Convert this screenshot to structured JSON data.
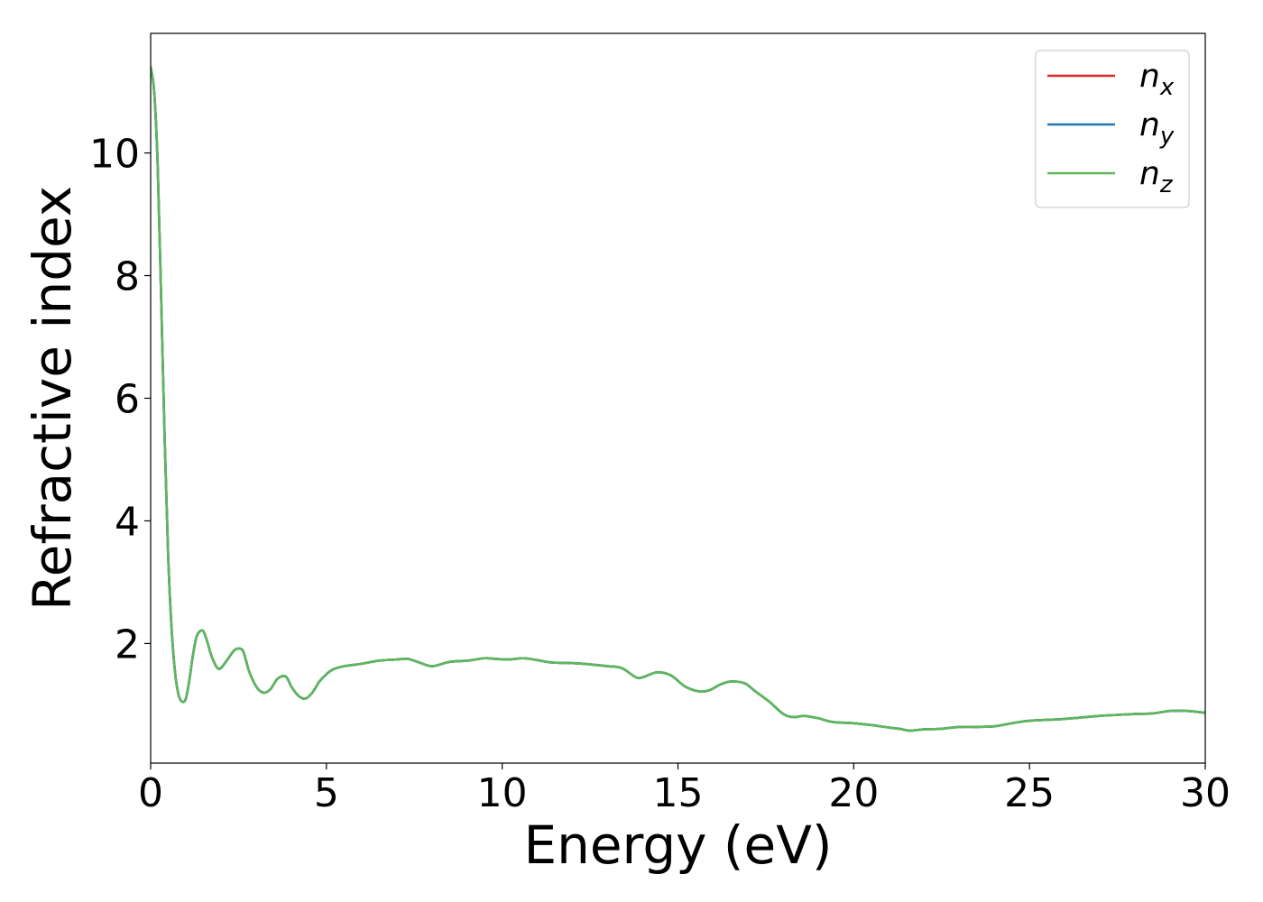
{
  "chart_data": {
    "type": "line",
    "xlabel": "Energy (eV)",
    "ylabel": "Refractive index",
    "xlim": [
      0,
      30
    ],
    "ylim": [
      0.05,
      11.95
    ],
    "x_ticks": [
      0,
      5,
      10,
      15,
      20,
      25,
      30
    ],
    "x_tick_labels": [
      "0",
      "5",
      "10",
      "15",
      "20",
      "25",
      "30"
    ],
    "y_ticks": [
      2,
      4,
      6,
      8,
      10
    ],
    "y_tick_labels": [
      "2",
      "4",
      "6",
      "8",
      "10"
    ],
    "grid": false,
    "legend_position": "top-right",
    "x": [
      0,
      0.1,
      0.2,
      0.3,
      0.4,
      0.5,
      0.6,
      0.7,
      0.8,
      0.9,
      1.0,
      1.1,
      1.2,
      1.3,
      1.4,
      1.5,
      1.6,
      1.7,
      1.8,
      1.9,
      2.0,
      2.2,
      2.4,
      2.6,
      2.7,
      2.8,
      3.0,
      3.2,
      3.4,
      3.6,
      3.8,
      3.9,
      4.0,
      4.2,
      4.4,
      4.6,
      4.8,
      5.0,
      5.2,
      5.5,
      6.0,
      6.5,
      7.0,
      7.3,
      7.6,
      8.0,
      8.5,
      9.0,
      9.5,
      9.8,
      10.2,
      10.6,
      11.0,
      11.4,
      12.0,
      12.5,
      13.0,
      13.4,
      13.8,
      14.0,
      14.4,
      14.8,
      15.2,
      15.6,
      15.9,
      16.2,
      16.5,
      16.9,
      17.2,
      17.6,
      18.0,
      18.3,
      18.6,
      19.0,
      19.4,
      20.0,
      20.5,
      21.0,
      21.3,
      21.6,
      22.0,
      22.5,
      23.0,
      23.5,
      24.0,
      24.5,
      25.0,
      26.0,
      27.0,
      28.0,
      28.5,
      29.0,
      29.5,
      30.0
    ],
    "series": [
      {
        "name": "n_x",
        "label_main": "n",
        "label_sub": "x",
        "color": "#d62728",
        "values": [
          11.4,
          11.0,
          9.8,
          7.6,
          5.3,
          3.4,
          2.2,
          1.5,
          1.15,
          1.05,
          1.1,
          1.4,
          1.8,
          2.1,
          2.2,
          2.2,
          2.05,
          1.85,
          1.7,
          1.6,
          1.6,
          1.75,
          1.9,
          1.9,
          1.75,
          1.55,
          1.3,
          1.2,
          1.25,
          1.42,
          1.47,
          1.42,
          1.3,
          1.15,
          1.1,
          1.2,
          1.38,
          1.5,
          1.58,
          1.63,
          1.67,
          1.72,
          1.74,
          1.75,
          1.7,
          1.63,
          1.7,
          1.72,
          1.76,
          1.75,
          1.74,
          1.76,
          1.73,
          1.69,
          1.68,
          1.66,
          1.63,
          1.6,
          1.45,
          1.45,
          1.53,
          1.48,
          1.3,
          1.22,
          1.24,
          1.33,
          1.38,
          1.35,
          1.22,
          1.05,
          0.85,
          0.8,
          0.82,
          0.78,
          0.72,
          0.7,
          0.67,
          0.63,
          0.61,
          0.58,
          0.6,
          0.61,
          0.64,
          0.64,
          0.65,
          0.7,
          0.74,
          0.77,
          0.82,
          0.85,
          0.86,
          0.9,
          0.9,
          0.87
        ]
      },
      {
        "name": "n_y",
        "label_main": "n",
        "label_sub": "y",
        "color": "#1f77b4",
        "values": [
          11.4,
          11.0,
          9.8,
          7.6,
          5.3,
          3.4,
          2.2,
          1.5,
          1.15,
          1.05,
          1.1,
          1.4,
          1.8,
          2.1,
          2.2,
          2.2,
          2.05,
          1.85,
          1.7,
          1.6,
          1.6,
          1.75,
          1.9,
          1.9,
          1.75,
          1.55,
          1.3,
          1.2,
          1.25,
          1.42,
          1.47,
          1.42,
          1.3,
          1.15,
          1.1,
          1.2,
          1.38,
          1.5,
          1.58,
          1.63,
          1.67,
          1.72,
          1.74,
          1.75,
          1.7,
          1.63,
          1.7,
          1.72,
          1.76,
          1.75,
          1.74,
          1.76,
          1.73,
          1.69,
          1.68,
          1.66,
          1.63,
          1.6,
          1.45,
          1.45,
          1.53,
          1.48,
          1.3,
          1.22,
          1.24,
          1.33,
          1.38,
          1.35,
          1.22,
          1.05,
          0.85,
          0.8,
          0.82,
          0.78,
          0.72,
          0.7,
          0.67,
          0.63,
          0.61,
          0.58,
          0.6,
          0.61,
          0.64,
          0.64,
          0.65,
          0.7,
          0.74,
          0.77,
          0.82,
          0.85,
          0.86,
          0.9,
          0.9,
          0.87
        ]
      },
      {
        "name": "n_z",
        "label_main": "n",
        "label_sub": "z",
        "color": "#5cb85c",
        "values": [
          11.4,
          11.0,
          9.8,
          7.6,
          5.3,
          3.4,
          2.2,
          1.5,
          1.15,
          1.05,
          1.1,
          1.4,
          1.8,
          2.1,
          2.2,
          2.2,
          2.05,
          1.85,
          1.7,
          1.6,
          1.6,
          1.75,
          1.9,
          1.9,
          1.75,
          1.55,
          1.3,
          1.2,
          1.25,
          1.42,
          1.47,
          1.42,
          1.3,
          1.15,
          1.1,
          1.2,
          1.38,
          1.5,
          1.58,
          1.63,
          1.67,
          1.72,
          1.74,
          1.75,
          1.7,
          1.63,
          1.7,
          1.72,
          1.76,
          1.75,
          1.74,
          1.76,
          1.73,
          1.69,
          1.68,
          1.66,
          1.63,
          1.6,
          1.45,
          1.45,
          1.53,
          1.48,
          1.3,
          1.22,
          1.24,
          1.33,
          1.38,
          1.35,
          1.22,
          1.05,
          0.85,
          0.8,
          0.82,
          0.78,
          0.72,
          0.7,
          0.67,
          0.63,
          0.61,
          0.58,
          0.6,
          0.61,
          0.64,
          0.64,
          0.65,
          0.7,
          0.74,
          0.77,
          0.82,
          0.85,
          0.86,
          0.9,
          0.9,
          0.87
        ]
      }
    ]
  }
}
